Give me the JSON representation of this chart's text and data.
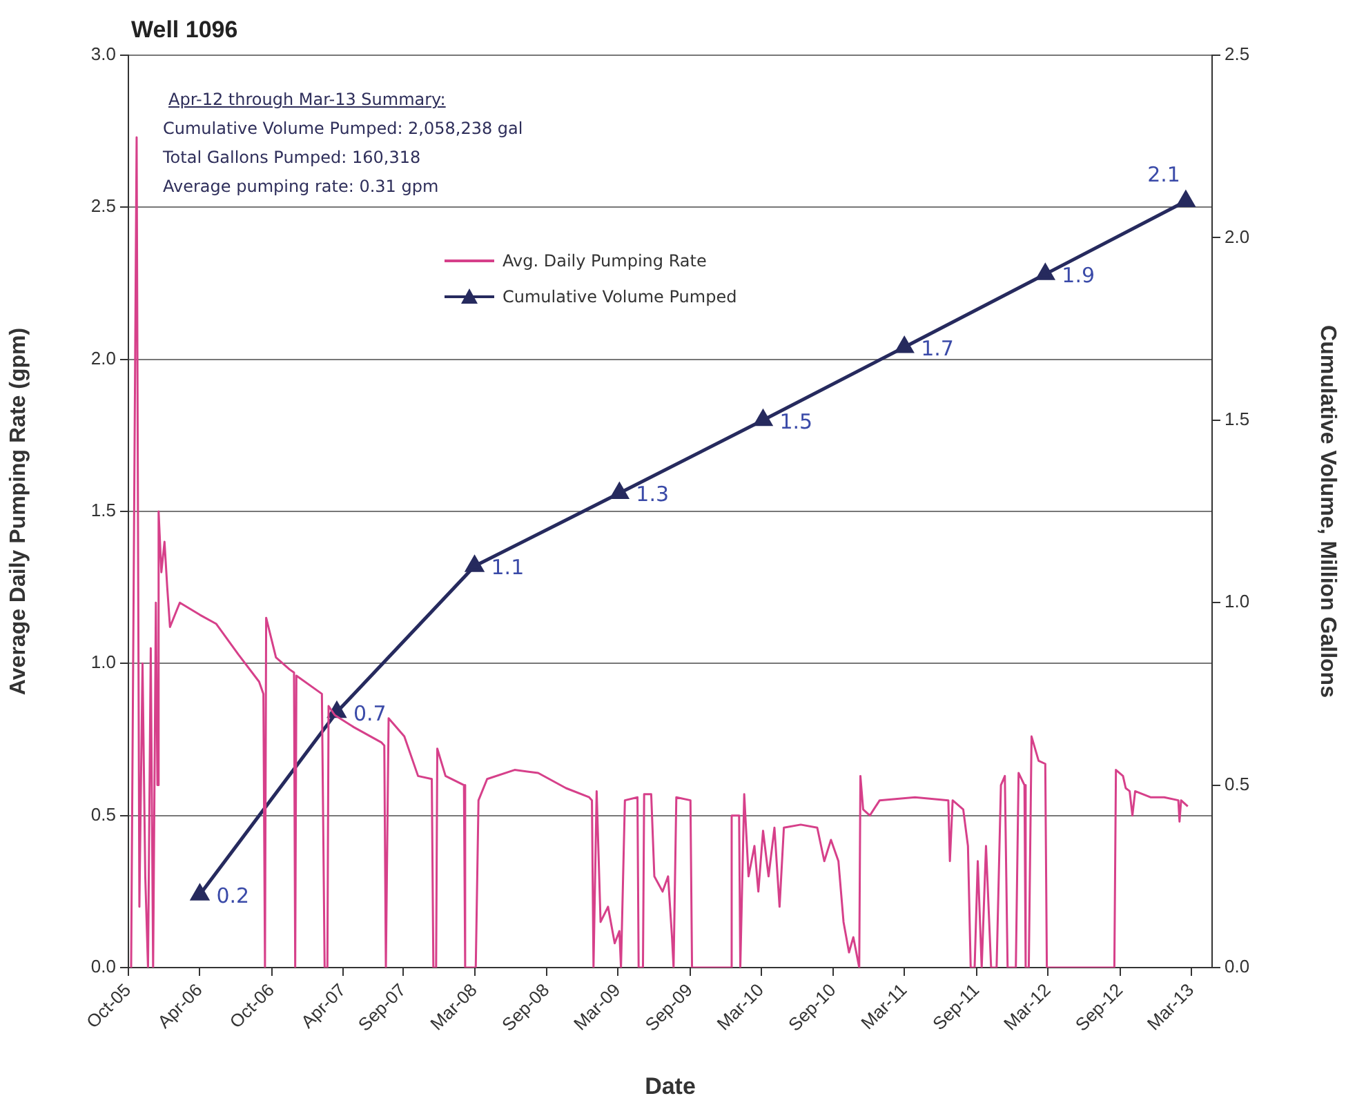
{
  "chart_data": {
    "type": "line",
    "title": "Well 1096",
    "xlabel": "Date",
    "ylabel": "Average Daily Pumping Rate (gpm)",
    "y2label": "Cumulative Volume, Million Gallons",
    "annotations": [
      "Apr-12 through Mar-13 Summary:",
      "Cumulative Volume Pumped:  2,058,238 gal",
      "Total Gallons Pumped: 160,318",
      "Average pumping rate: 0.31 gpm"
    ],
    "xlim": [
      "2005-10-01",
      "2013-04-23"
    ],
    "xticks": [
      {
        "value": "2005-10-01",
        "label": "Oct-05"
      },
      {
        "value": "2006-04-01",
        "label": "Apr-06"
      },
      {
        "value": "2006-10-01",
        "label": "Oct-06"
      },
      {
        "value": "2007-04-01",
        "label": "Apr-07"
      },
      {
        "value": "2007-09-01",
        "label": "Sep-07"
      },
      {
        "value": "2008-03-01",
        "label": "Mar-08"
      },
      {
        "value": "2008-09-01",
        "label": "Sep-08"
      },
      {
        "value": "2009-03-01",
        "label": "Mar-09"
      },
      {
        "value": "2009-09-01",
        "label": "Sep-09"
      },
      {
        "value": "2010-03-01",
        "label": "Mar-10"
      },
      {
        "value": "2010-09-01",
        "label": "Sep-10"
      },
      {
        "value": "2011-03-01",
        "label": "Mar-11"
      },
      {
        "value": "2011-09-01",
        "label": "Sep-11"
      },
      {
        "value": "2012-03-01",
        "label": "Mar-12"
      },
      {
        "value": "2012-09-01",
        "label": "Sep-12"
      },
      {
        "value": "2013-03-01",
        "label": "Mar-13"
      }
    ],
    "ylim": [
      0,
      3
    ],
    "yticks": [
      {
        "value": 0,
        "label": "0.0"
      },
      {
        "value": 0.5,
        "label": "0.5"
      },
      {
        "value": 1,
        "label": "1.0"
      },
      {
        "value": 1.5,
        "label": "1.5"
      },
      {
        "value": 2,
        "label": "2.0"
      },
      {
        "value": 2.5,
        "label": "2.5"
      },
      {
        "value": 3,
        "label": "3.0"
      }
    ],
    "y2lim": [
      0,
      2.5
    ],
    "y2ticks": [
      {
        "value": 0,
        "label": "0.0"
      },
      {
        "value": 0.5,
        "label": "0.5"
      },
      {
        "value": 1,
        "label": "1.0"
      },
      {
        "value": 1.5,
        "label": "1.5"
      },
      {
        "value": 2,
        "label": "2.0"
      },
      {
        "value": 2.5,
        "label": "2.5"
      }
    ],
    "grid": "y",
    "legend": "top",
    "series": [
      {
        "name": "Avg. Daily Pumping Rate",
        "color": "#d6408a",
        "marker": "none",
        "x": [
          "2005-10-08",
          "2005-10-22",
          "2005-10-29",
          "2005-11-06",
          "2005-11-13",
          "2005-11-20",
          "2005-11-27",
          "2005-12-03",
          "2005-12-10",
          "2005-12-14",
          "2005-12-17",
          "2005-12-24",
          "2006-01-01",
          "2006-01-08",
          "2006-01-15",
          "2006-02-09",
          "2006-04-01",
          "2006-05-13",
          "2006-07-08",
          "2006-08-30",
          "2006-09-10",
          "2006-09-14",
          "2006-09-17",
          "2006-10-12",
          "2006-11-16",
          "2006-11-27",
          "2006-11-30",
          "2006-12-03",
          "2007-02-06",
          "2007-02-13",
          "2007-02-20",
          "2007-02-23",
          "2007-03-11",
          "2007-04-29",
          "2007-07-08",
          "2007-07-15",
          "2007-07-19",
          "2007-07-26",
          "2007-09-04",
          "2007-10-09",
          "2007-11-13",
          "2007-11-17",
          "2007-11-24",
          "2007-11-27",
          "2007-12-18",
          "2008-02-03",
          "2008-02-06",
          "2008-03-04",
          "2008-03-11",
          "2008-04-02",
          "2008-06-11",
          "2008-08-10",
          "2008-10-20",
          "2008-12-18",
          "2008-12-25",
          "2008-12-29",
          "2009-01-06",
          "2009-01-16",
          "2009-02-04",
          "2009-02-21",
          "2009-03-05",
          "2009-03-09",
          "2009-03-19",
          "2009-04-20",
          "2009-04-23",
          "2009-05-04",
          "2009-05-07",
          "2009-05-25",
          "2009-06-02",
          "2009-06-23",
          "2009-07-07",
          "2009-07-17",
          "2009-07-21",
          "2009-07-28",
          "2009-09-02",
          "2009-09-06",
          "2009-12-13",
          "2009-12-16",
          "2010-01-04",
          "2010-01-07",
          "2010-01-14",
          "2010-01-17",
          "2010-01-28",
          "2010-02-12",
          "2010-02-22",
          "2010-03-06",
          "2010-03-20",
          "2010-04-04",
          "2010-04-17",
          "2010-04-28",
          "2010-06-10",
          "2010-07-22",
          "2010-08-09",
          "2010-08-26",
          "2010-09-14",
          "2010-09-27",
          "2010-10-11",
          "2010-10-22",
          "2010-11-06",
          "2010-11-09",
          "2010-11-16",
          "2010-12-03",
          "2010-12-28",
          "2011-03-28",
          "2011-06-21",
          "2011-06-25",
          "2011-07-02",
          "2011-07-29",
          "2011-08-10",
          "2011-08-17",
          "2011-08-27",
          "2011-09-04",
          "2011-09-14",
          "2011-09-25",
          "2011-10-08",
          "2011-10-22",
          "2011-11-02",
          "2011-11-12",
          "2011-11-19",
          "2011-12-10",
          "2011-12-17",
          "2012-01-01",
          "2012-01-04",
          "2012-01-12",
          "2012-01-19",
          "2012-02-06",
          "2012-02-23",
          "2012-02-27",
          "2012-08-17",
          "2012-08-21",
          "2012-09-08",
          "2012-09-15",
          "2012-09-25",
          "2012-10-02",
          "2012-10-09",
          "2012-11-17",
          "2012-12-22",
          "2013-01-27",
          "2013-01-30",
          "2013-02-03",
          "2013-02-20"
        ],
        "values": [
          0,
          2.73,
          0.2,
          1.0,
          0.3,
          0,
          1.05,
          0,
          1.2,
          0.6,
          1.5,
          1.3,
          1.4,
          1.25,
          1.12,
          1.2,
          1.16,
          1.13,
          1.03,
          0.94,
          0.9,
          0,
          1.15,
          1.02,
          0.98,
          0.97,
          0,
          0.96,
          0.9,
          0,
          0,
          0.86,
          0.83,
          0.79,
          0.74,
          0.73,
          0,
          0.82,
          0.76,
          0.63,
          0.62,
          0,
          0,
          0.72,
          0.63,
          0.6,
          0,
          0,
          0.55,
          0.62,
          0.65,
          0.64,
          0.59,
          0.56,
          0.55,
          0,
          0.58,
          0.15,
          0.2,
          0.08,
          0.12,
          0,
          0.55,
          0.56,
          0,
          0,
          0.57,
          0.57,
          0.3,
          0.25,
          0.3,
          0.1,
          0,
          0.56,
          0.55,
          0,
          0,
          0.5,
          0.5,
          0,
          0.4,
          0.57,
          0.3,
          0.4,
          0.25,
          0.45,
          0.3,
          0.46,
          0.2,
          0.46,
          0.47,
          0.46,
          0.35,
          0.42,
          0.35,
          0.15,
          0.05,
          0.1,
          0,
          0.63,
          0.52,
          0.5,
          0.55,
          0.56,
          0.55,
          0.35,
          0.55,
          0.52,
          0.4,
          0,
          0,
          0.35,
          0,
          0.4,
          0,
          0,
          0.6,
          0.63,
          0,
          0,
          0.64,
          0.6,
          0,
          0,
          0.76,
          0.68,
          0.67,
          0,
          0,
          0.65,
          0.63,
          0.59,
          0.58,
          0.5,
          0.58,
          0.56,
          0.56,
          0.55,
          0.48,
          0.55,
          0.53
        ]
      },
      {
        "name": "Cumulative Volume Pumped",
        "axis": "y2",
        "color": "#262a5e",
        "marker": "triangle",
        "x": [
          "2006-04-01",
          "2007-03-16",
          "2008-03-01",
          "2009-03-05",
          "2010-03-06",
          "2011-03-01",
          "2012-02-23",
          "2013-02-15"
        ],
        "values": [
          0.2,
          0.7,
          1.1,
          1.3,
          1.5,
          1.7,
          1.9,
          2.1
        ],
        "value_labels": [
          "0.2",
          "0.7",
          "1.1",
          "1.3",
          "1.5",
          "1.7",
          "1.9",
          "2.1"
        ]
      }
    ]
  }
}
